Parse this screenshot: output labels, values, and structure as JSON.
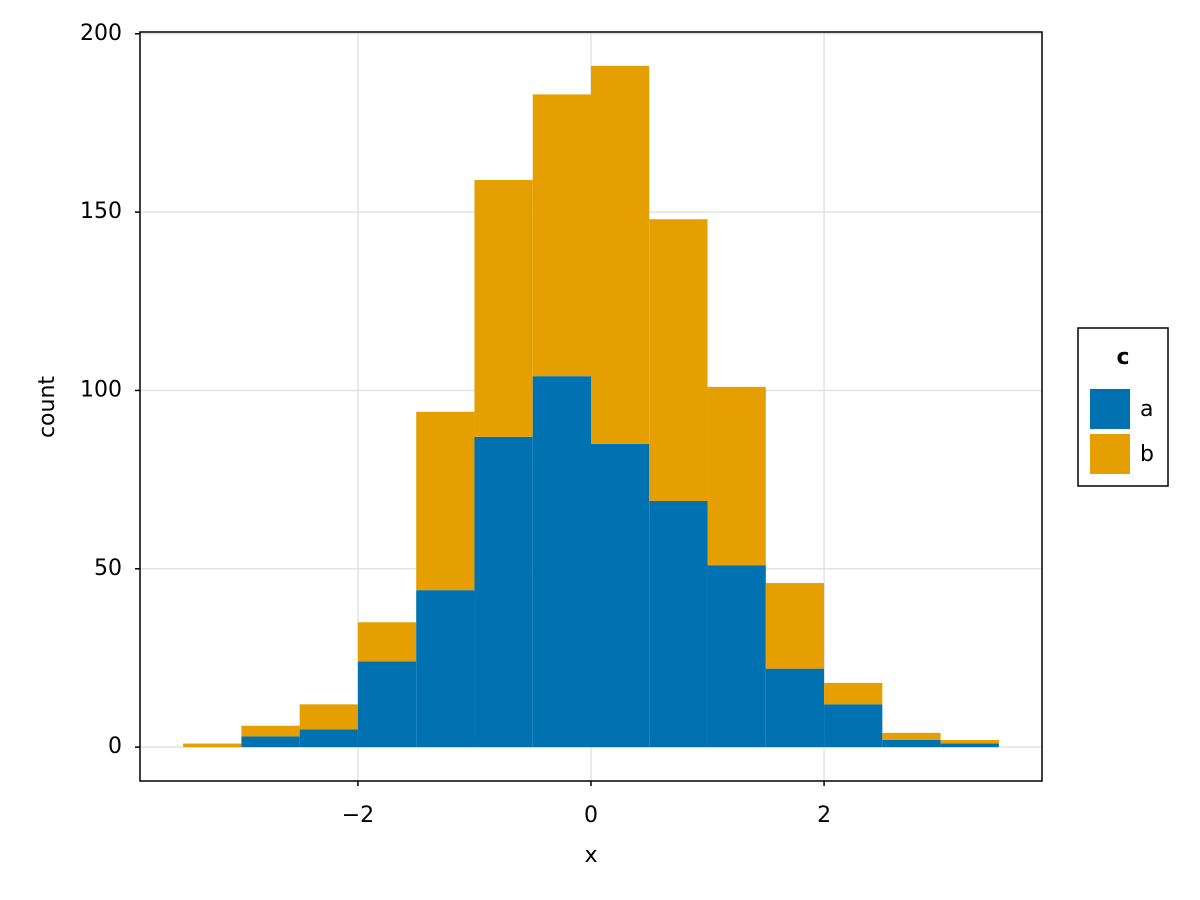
{
  "chart_data": {
    "type": "histogram",
    "stacked": true,
    "xlabel": "x",
    "ylabel": "count",
    "bins": [
      -3.5,
      -3,
      -2.5,
      -2,
      -1.5,
      -1,
      -0.5,
      0,
      0.5,
      1,
      1.5,
      2,
      2.5,
      3,
      3.5
    ],
    "series": [
      {
        "name": "a",
        "color": "#0072b2",
        "values": [
          0,
          3,
          5,
          24,
          44,
          87,
          104,
          85,
          69,
          51,
          22,
          12,
          2,
          1
        ]
      },
      {
        "name": "b",
        "color": "#e69f00",
        "values": [
          1,
          3,
          7,
          11,
          50,
          72,
          79,
          106,
          79,
          50,
          24,
          6,
          2,
          1
        ]
      }
    ],
    "legend_title": "c",
    "legend_position": "right",
    "xlim": [
      -3.87,
      3.87
    ],
    "xticks": [
      {
        "value": -2,
        "label": "−2"
      },
      0,
      2
    ],
    "ylim": [
      -9.5,
      200.5
    ],
    "yticks": [
      0,
      50,
      100,
      150,
      200
    ],
    "grid": true
  }
}
